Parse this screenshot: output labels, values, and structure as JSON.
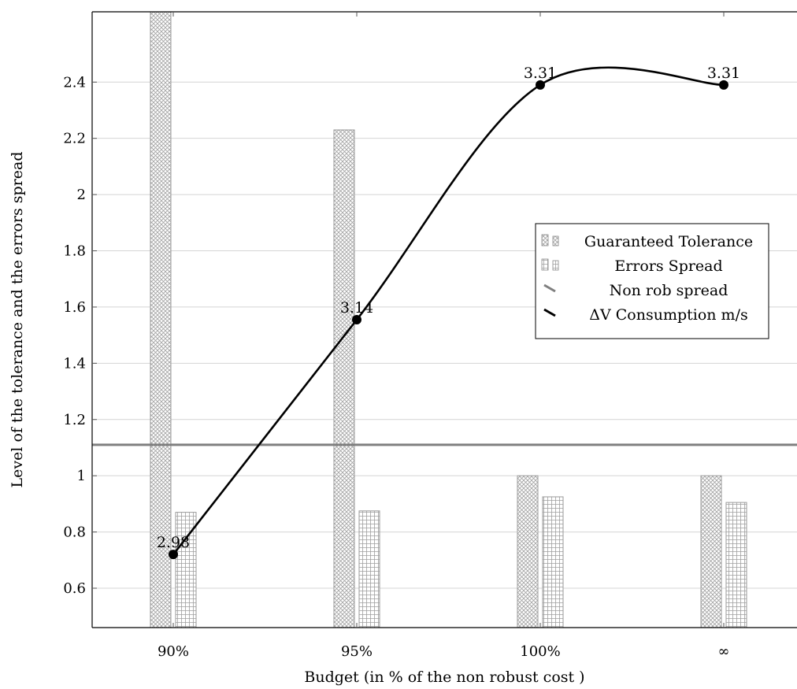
{
  "chart_data": {
    "type": "bar",
    "categories": [
      "90%",
      "95%",
      "100%",
      "∞"
    ],
    "xlabel": "Budget (in % of the non robust cost )",
    "ylabel": "Level of the tolerance and the errors spread",
    "ylim": [
      0.46,
      2.65
    ],
    "yticks": [
      0.6,
      0.8,
      1,
      1.2,
      1.4,
      1.6,
      1.8,
      2,
      2.2,
      2.4
    ],
    "ytick_labels": [
      "0.6",
      "0.8",
      "1",
      "1.2",
      "1.4",
      "1.6",
      "1.8",
      "2",
      "2.2",
      "2.4"
    ],
    "grid": true,
    "legend_position": "right",
    "series": [
      {
        "name": "Guaranteed Tolerance",
        "kind": "bar",
        "pattern": "crosshatch",
        "values": [
          2.65,
          2.23,
          1.0,
          1.0
        ]
      },
      {
        "name": "Errors Spread",
        "kind": "bar",
        "pattern": "grid",
        "values": [
          0.87,
          0.875,
          0.925,
          0.905
        ]
      },
      {
        "name": "Non rob spread",
        "kind": "hline",
        "value": 1.11,
        "color": "#7f7f7f"
      },
      {
        "name": "ΔV Consumption m/s",
        "kind": "line",
        "smooth": true,
        "values": [
          0.72,
          1.555,
          2.39,
          2.39
        ],
        "labels": [
          "2.98",
          "3.14",
          "3.31",
          "3.31"
        ],
        "color": "#000000"
      }
    ]
  }
}
